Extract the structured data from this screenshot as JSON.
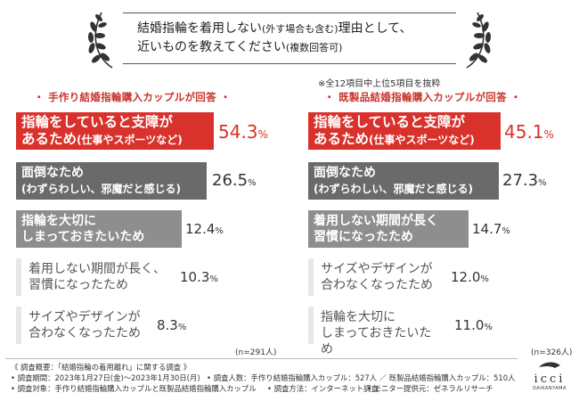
{
  "title": {
    "line1_main": "結婚指輪を着用しない",
    "line1_small": "(外す場合も含む)",
    "line1_end": "理由として、",
    "line2_main": "近いものを教えてください",
    "line2_small": "(複数回答可)"
  },
  "note": "※全12項目中上位5項目を抜粋",
  "columns": [
    {
      "header": "・ 手作り結婚指輪購入カップルが回答 ・",
      "n_label": "(n=291人)",
      "items": [
        {
          "line1": "指輪をしていると支障が",
          "line2": "あるため",
          "line2_sub": "(仕事やスポーツなど)",
          "value_main": "54.3",
          "value_pct": "%"
        },
        {
          "line1": "面倒なため",
          "line2_sub": "(わずらわしい、邪魔だと感じる)",
          "value_main": "26.5",
          "value_pct": "%"
        },
        {
          "line1": "指輪を大切に",
          "line2": "しまっておきたいため",
          "value_main": "12.4",
          "value_pct": "%"
        },
        {
          "line1": "着用しない期間が長く、",
          "line2": "習慣になったため",
          "value_main": "10.3",
          "value_pct": "%"
        },
        {
          "line1": "サイズやデザインが",
          "line2": "合わなくなったため",
          "value_main": "8.3",
          "value_pct": "%"
        }
      ]
    },
    {
      "header": "・ 既製品結婚指輪購入カップルが回答 ・",
      "n_label": "(n=326人)",
      "items": [
        {
          "line1": "指輪をしていると支障が",
          "line2": "あるため",
          "line2_sub": "(仕事やスポーツなど)",
          "value_main": "45.1",
          "value_pct": "%"
        },
        {
          "line1": "面倒なため",
          "line2_sub": "(わずらわしい、邪魔だと感じる)",
          "value_main": "27.3",
          "value_pct": "%"
        },
        {
          "line1": "着用しない期間が長く",
          "line2": "習慣になったため",
          "value_main": "14.7",
          "value_pct": "%"
        },
        {
          "line1": "サイズやデザインが",
          "line2": "合わなくなったため",
          "value_main": "12.0",
          "value_pct": "%"
        },
        {
          "line1": "指輪を大切に",
          "line2": "しまっておきたいため",
          "value_main": "11.0",
          "value_pct": "%"
        }
      ]
    }
  ],
  "chart_data": [
    {
      "type": "bar",
      "title": "手作り結婚指輪購入カップルが回答",
      "categories": [
        "指輪をしていると支障があるため(仕事やスポーツなど)",
        "面倒なため(わずらわしい、邪魔だと感じる)",
        "指輪を大切にしまっておきたいため",
        "着用しない期間が長く、習慣になったため",
        "サイズやデザインが合わなくなったため"
      ],
      "values": [
        54.3,
        26.5,
        12.4,
        10.3,
        8.3
      ],
      "unit": "%"
    },
    {
      "type": "bar",
      "title": "既製品結婚指輪購入カップルが回答",
      "categories": [
        "指輪をしていると支障があるため(仕事やスポーツなど)",
        "面倒なため(わずらわしい、邪魔だと感じる)",
        "着用しない期間が長く習慣になったため",
        "サイズやデザインが合わなくなったため",
        "指輪を大切にしまっておきたいため"
      ],
      "values": [
        45.1,
        27.3,
        14.7,
        12.0,
        11.0
      ],
      "unit": "%"
    }
  ],
  "footer": {
    "line1": "《 調査概要：「結婚指輪の着用離れ」に関する調査 》",
    "line2a": "• 調査期間：2023年1月27日(金)～2023年1月30日(月)",
    "line2b": "• 調査人数：手作り結婚指輪購入カップル：527人 ／ 既製品結婚指輪購入カップル：510人",
    "line3a": "• 調査対象：手作り結婚指輪購入カップルと既製品結婚指輪購入カップル",
    "line3b": "• 調査方法：インターネット調査",
    "line3c": "• モニター提供元：ゼネラルリサーチ"
  },
  "brand": {
    "name": "icci",
    "sub": "DAIKANYAMA"
  },
  "colors": {
    "accent": "#d9312b",
    "dark": "#6a6a6a",
    "mid": "#8e8e8e"
  }
}
